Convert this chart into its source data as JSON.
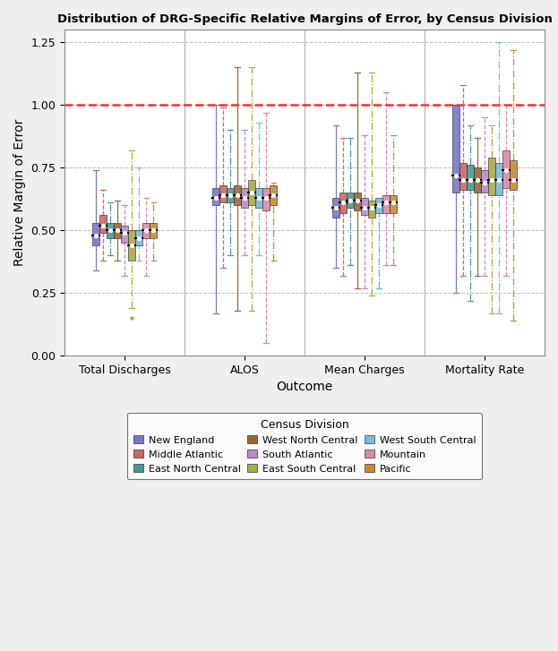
{
  "title": "Distribution of DRG-Specific Relative Margins of Error, by Census Division",
  "xlabel": "Outcome",
  "ylabel": "Relative Margin of Error",
  "ylim": [
    0.0,
    1.3
  ],
  "yticks": [
    0.0,
    0.25,
    0.5,
    0.75,
    1.0,
    1.25
  ],
  "outcomes": [
    "Total Discharges",
    "ALOS",
    "Mean Charges",
    "Mortality Rate"
  ],
  "outcome_centers": [
    1.0,
    2.0,
    3.0,
    4.0
  ],
  "divisions": [
    "New England",
    "Middle Atlantic",
    "East North Central",
    "West North Central",
    "South Atlantic",
    "East South Central",
    "West South Central",
    "Mountain",
    "Pacific"
  ],
  "colors": {
    "New England": "#7777CC",
    "Middle Atlantic": "#CC6666",
    "East North Central": "#449999",
    "West North Central": "#996633",
    "South Atlantic": "#BB88CC",
    "East South Central": "#AAAA44",
    "West South Central": "#77BBDD",
    "Mountain": "#DD88AA",
    "Pacific": "#CC8833"
  },
  "linestyles": {
    "New England": "solid",
    "Middle Atlantic": "dashed",
    "East North Central": "dashdot",
    "West North Central": "solid",
    "South Atlantic": "dashed",
    "East South Central": "dashdot",
    "West South Central": "dashdot",
    "Mountain": "dashed",
    "Pacific": "dashdot"
  },
  "box_data": {
    "Total Discharges": {
      "New England": {
        "whislo": 0.34,
        "q1": 0.44,
        "med": 0.48,
        "q3": 0.53,
        "whishi": 0.74
      },
      "Middle Atlantic": {
        "whislo": 0.38,
        "q1": 0.49,
        "med": 0.52,
        "q3": 0.56,
        "whishi": 0.66
      },
      "East North Central": {
        "whislo": 0.4,
        "q1": 0.47,
        "med": 0.5,
        "q3": 0.53,
        "whishi": 0.61
      },
      "West North Central": {
        "whislo": 0.38,
        "q1": 0.47,
        "med": 0.5,
        "q3": 0.53,
        "whishi": 0.62
      },
      "South Atlantic": {
        "whislo": 0.32,
        "q1": 0.45,
        "med": 0.49,
        "q3": 0.52,
        "whishi": 0.6
      },
      "East South Central": {
        "whislo": 0.19,
        "q1": 0.38,
        "med": 0.44,
        "q3": 0.5,
        "whishi": 0.82
      },
      "West South Central": {
        "whislo": 0.38,
        "q1": 0.44,
        "med": 0.47,
        "q3": 0.5,
        "whishi": 0.75
      },
      "Mountain": {
        "whislo": 0.32,
        "q1": 0.47,
        "med": 0.5,
        "q3": 0.53,
        "whishi": 0.63
      },
      "Pacific": {
        "whislo": 0.38,
        "q1": 0.47,
        "med": 0.5,
        "q3": 0.53,
        "whishi": 0.61
      }
    },
    "ALOS": {
      "New England": {
        "whislo": 0.17,
        "q1": 0.6,
        "med": 0.63,
        "q3": 0.67,
        "whishi": 1.0
      },
      "Middle Atlantic": {
        "whislo": 0.35,
        "q1": 0.61,
        "med": 0.64,
        "q3": 0.68,
        "whishi": 0.99
      },
      "East North Central": {
        "whislo": 0.4,
        "q1": 0.61,
        "med": 0.64,
        "q3": 0.67,
        "whishi": 0.9
      },
      "West North Central": {
        "whislo": 0.18,
        "q1": 0.6,
        "med": 0.64,
        "q3": 0.68,
        "whishi": 1.15
      },
      "South Atlantic": {
        "whislo": 0.4,
        "q1": 0.59,
        "med": 0.63,
        "q3": 0.67,
        "whishi": 0.9
      },
      "East South Central": {
        "whislo": 0.18,
        "q1": 0.6,
        "med": 0.65,
        "q3": 0.7,
        "whishi": 1.15
      },
      "West South Central": {
        "whislo": 0.4,
        "q1": 0.59,
        "med": 0.63,
        "q3": 0.67,
        "whishi": 0.93
      },
      "Mountain": {
        "whislo": 0.05,
        "q1": 0.58,
        "med": 0.63,
        "q3": 0.67,
        "whishi": 0.97
      },
      "Pacific": {
        "whislo": 0.38,
        "q1": 0.6,
        "med": 0.64,
        "q3": 0.68,
        "whishi": 0.69
      }
    },
    "Mean Charges": {
      "New England": {
        "whislo": 0.35,
        "q1": 0.55,
        "med": 0.59,
        "q3": 0.63,
        "whishi": 0.92
      },
      "Middle Atlantic": {
        "whislo": 0.32,
        "q1": 0.57,
        "med": 0.61,
        "q3": 0.65,
        "whishi": 0.87
      },
      "East North Central": {
        "whislo": 0.36,
        "q1": 0.59,
        "med": 0.62,
        "q3": 0.65,
        "whishi": 0.87
      },
      "West North Central": {
        "whislo": 0.27,
        "q1": 0.58,
        "med": 0.62,
        "q3": 0.65,
        "whishi": 1.13
      },
      "South Atlantic": {
        "whislo": 0.27,
        "q1": 0.56,
        "med": 0.59,
        "q3": 0.63,
        "whishi": 0.88
      },
      "East South Central": {
        "whislo": 0.24,
        "q1": 0.55,
        "med": 0.59,
        "q3": 0.62,
        "whishi": 1.13
      },
      "West South Central": {
        "whislo": 0.27,
        "q1": 0.57,
        "med": 0.6,
        "q3": 0.63,
        "whishi": 0.27
      },
      "Mountain": {
        "whislo": 0.36,
        "q1": 0.57,
        "med": 0.61,
        "q3": 0.64,
        "whishi": 1.05
      },
      "Pacific": {
        "whislo": 0.36,
        "q1": 0.57,
        "med": 0.61,
        "q3": 0.64,
        "whishi": 0.88
      }
    },
    "Mortality Rate": {
      "New England": {
        "whislo": 0.25,
        "q1": 0.65,
        "med": 0.72,
        "q3": 1.0,
        "whishi": 1.0
      },
      "Middle Atlantic": {
        "whislo": 0.32,
        "q1": 0.66,
        "med": 0.7,
        "q3": 0.77,
        "whishi": 1.08
      },
      "East North Central": {
        "whislo": 0.22,
        "q1": 0.66,
        "med": 0.7,
        "q3": 0.76,
        "whishi": 0.92
      },
      "West North Central": {
        "whislo": 0.32,
        "q1": 0.65,
        "med": 0.7,
        "q3": 0.75,
        "whishi": 0.87
      },
      "South Atlantic": {
        "whislo": 0.32,
        "q1": 0.65,
        "med": 0.69,
        "q3": 0.74,
        "whishi": 0.95
      },
      "East South Central": {
        "whislo": 0.17,
        "q1": 0.64,
        "med": 0.7,
        "q3": 0.79,
        "whishi": 0.92
      },
      "West South Central": {
        "whislo": 0.17,
        "q1": 0.64,
        "med": 0.7,
        "q3": 0.77,
        "whishi": 1.25
      },
      "Mountain": {
        "whislo": 0.32,
        "q1": 0.67,
        "med": 0.74,
        "q3": 0.82,
        "whishi": 1.0
      },
      "Pacific": {
        "whislo": 0.14,
        "q1": 0.66,
        "med": 0.7,
        "q3": 0.78,
        "whishi": 1.22
      }
    }
  },
  "fliers": {
    "Total Discharges": {
      "New England": [],
      "Middle Atlantic": [],
      "East North Central": [],
      "West North Central": [],
      "South Atlantic": [],
      "East South Central": [
        0.15
      ],
      "West South Central": [],
      "Mountain": [],
      "Pacific": []
    },
    "ALOS": {
      "New England": [],
      "Middle Atlantic": [],
      "East North Central": [],
      "West North Central": [],
      "South Atlantic": [],
      "East South Central": [],
      "West South Central": [],
      "Mountain": [],
      "Pacific": []
    },
    "Mean Charges": {
      "New England": [],
      "Middle Atlantic": [],
      "East North Central": [],
      "West North Central": [],
      "South Atlantic": [],
      "East South Central": [],
      "West South Central": [],
      "Mountain": [],
      "Pacific": []
    },
    "Mortality Rate": {
      "New England": [],
      "Middle Atlantic": [],
      "East North Central": [],
      "West North Central": [],
      "South Atlantic": [],
      "East South Central": [],
      "West South Central": [],
      "Mountain": [],
      "Pacific": []
    }
  },
  "fig_bg_color": "#EFEFEF",
  "plot_bg_color": "#FFFFFF",
  "ref_line_y": 1.0,
  "ref_line_color": "#EE3333",
  "grid_color": "#BBBBBB",
  "legend_order": [
    "New England",
    "Middle Atlantic",
    "East North Central",
    "West North Central",
    "South Atlantic",
    "East South Central",
    "West South Central",
    "Mountain",
    "Pacific"
  ]
}
